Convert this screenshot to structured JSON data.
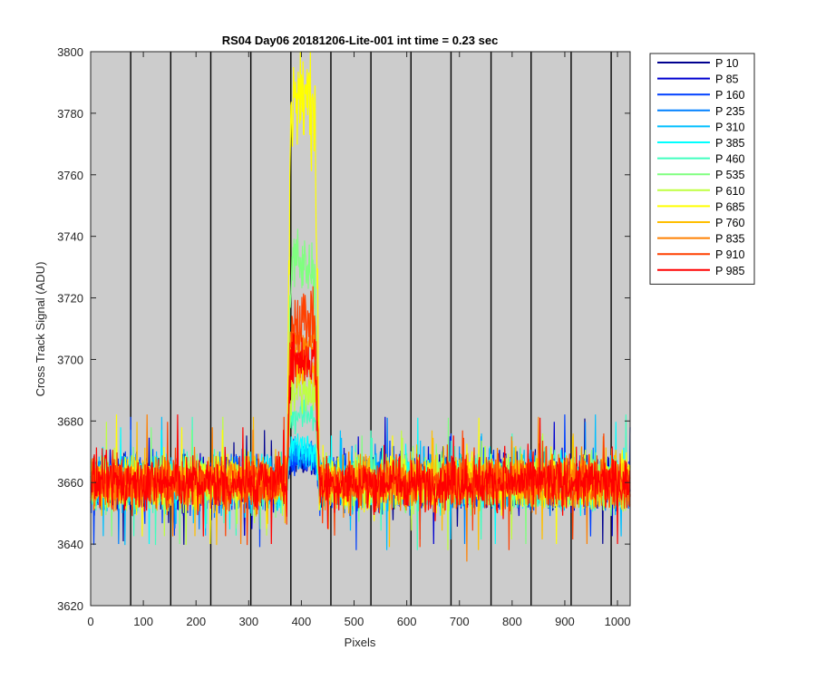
{
  "chart_data": {
    "type": "line",
    "title": "RS04 Day06 20181206-Lite-001 int time = 0.23 sec",
    "xlabel": "Pixels",
    "ylabel": "Cross Track Signal (ADU)",
    "xlim": [
      0,
      1024
    ],
    "ylim": [
      3620,
      3800
    ],
    "xticks": [
      0,
      100,
      200,
      300,
      400,
      500,
      600,
      700,
      800,
      900,
      1000
    ],
    "yticks": [
      3620,
      3640,
      3660,
      3680,
      3700,
      3720,
      3740,
      3760,
      3780,
      3800
    ],
    "vertical_lines_x": [
      76,
      152,
      228,
      304,
      380,
      456,
      532,
      608,
      684,
      760,
      836,
      912,
      988
    ],
    "plot_background": "#cccccc",
    "grid": false,
    "legend_position": "outside-top-right",
    "noise": {
      "mean": 3660,
      "min": 3630,
      "max": 3690,
      "step": 1
    },
    "series": [
      {
        "name": "P 10",
        "color": "#00008f",
        "peak": 3667,
        "base": 3660
      },
      {
        "name": "P 85",
        "color": "#0000d0",
        "peak": 3668,
        "base": 3660
      },
      {
        "name": "P 160",
        "color": "#0040ff",
        "peak": 3668,
        "base": 3660
      },
      {
        "name": "P 235",
        "color": "#0080ff",
        "peak": 3669,
        "base": 3660
      },
      {
        "name": "P 310",
        "color": "#00bfff",
        "peak": 3670,
        "base": 3660
      },
      {
        "name": "P 385",
        "color": "#00ffff",
        "peak": 3672,
        "base": 3660
      },
      {
        "name": "P 460",
        "color": "#40ffbf",
        "peak": 3682,
        "base": 3660
      },
      {
        "name": "P 535",
        "color": "#80ff80",
        "peak": 3730,
        "base": 3660
      },
      {
        "name": "P 610",
        "color": "#bfff40",
        "peak": 3690,
        "base": 3660
      },
      {
        "name": "P 685",
        "color": "#ffff00",
        "peak": 3785,
        "base": 3660
      },
      {
        "name": "P 760",
        "color": "#ffbf00",
        "peak": 3697,
        "base": 3660
      },
      {
        "name": "P 835",
        "color": "#ff8000",
        "peak": 3705,
        "base": 3660
      },
      {
        "name": "P 910",
        "color": "#ff4000",
        "peak": 3713,
        "base": 3660
      },
      {
        "name": "P 985",
        "color": "#ff0000",
        "peak": 3700,
        "base": 3660
      }
    ],
    "peak_region_x": [
      372,
      434
    ]
  }
}
